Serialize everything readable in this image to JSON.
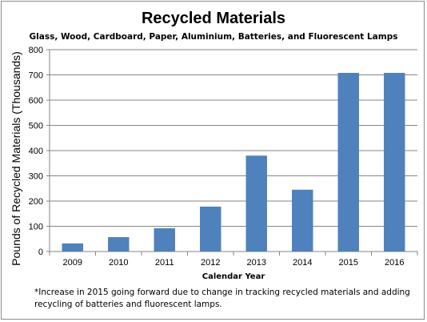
{
  "chart_data": {
    "type": "bar",
    "title": "Recycled Materials",
    "subtitle": "Glass, Wood, Cardboard, Paper, Aluminium, Batteries, and Fluorescent Lamps",
    "xlabel": "Calendar Year",
    "ylabel": "Pounds of Recycled Materials (Thousands)",
    "categories": [
      "2009",
      "2010",
      "2011",
      "2012",
      "2013",
      "2014",
      "2015",
      "2016"
    ],
    "values": [
      32,
      57,
      92,
      178,
      380,
      245,
      708,
      708
    ],
    "ylim": [
      0,
      800
    ],
    "yticks": [
      0,
      100,
      200,
      300,
      400,
      500,
      600,
      700,
      800
    ],
    "grid": true,
    "bar_color": "#4f81bd",
    "footnote": "*Increase in 2015 going forward due to change in tracking recycled materials and adding recycling of batteries and fluorescent lamps."
  }
}
